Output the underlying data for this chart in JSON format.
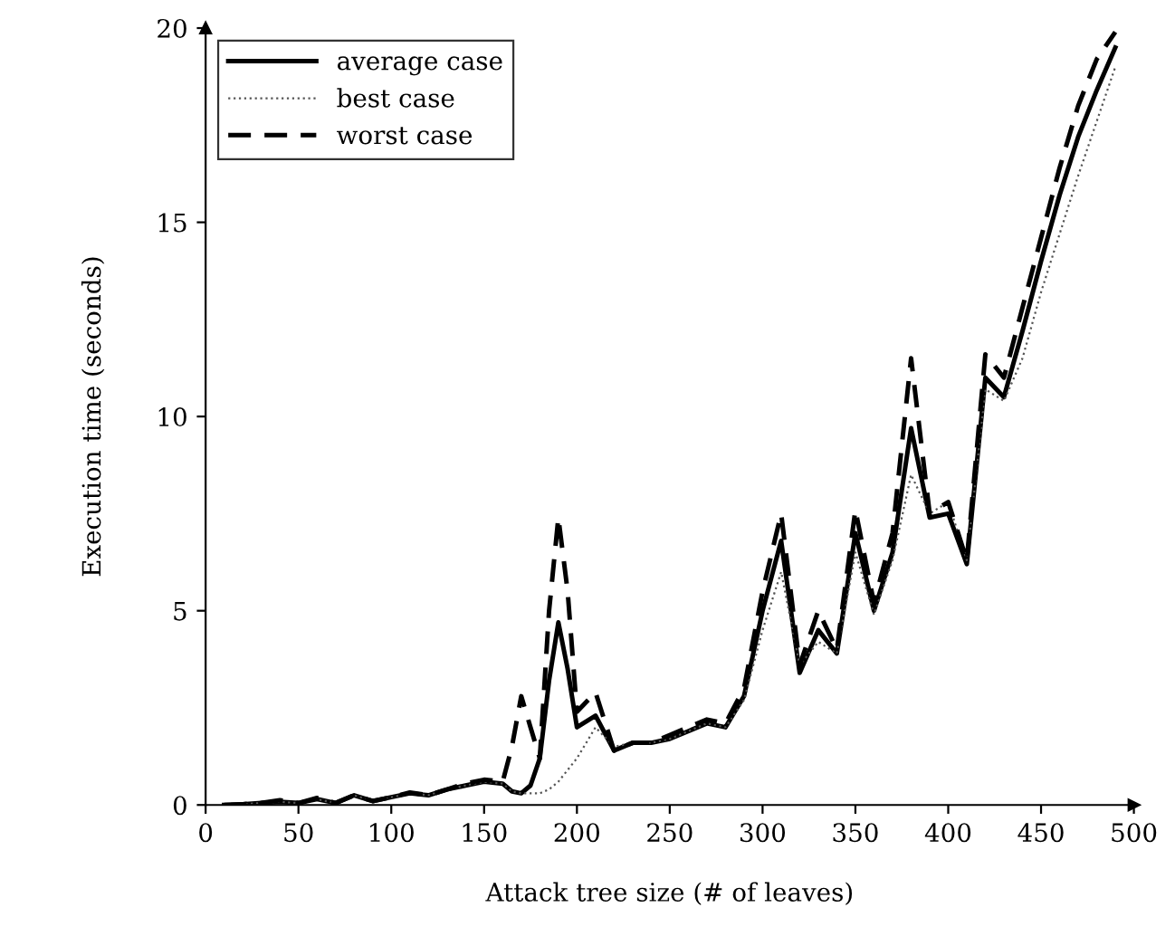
{
  "chart_data": {
    "type": "line",
    "xlabel": "Attack tree size (# of leaves)",
    "ylabel": "Execution time (seconds)",
    "x": [
      10,
      20,
      30,
      40,
      50,
      60,
      70,
      80,
      90,
      100,
      110,
      120,
      130,
      140,
      150,
      160,
      165,
      170,
      175,
      180,
      185,
      190,
      195,
      200,
      210,
      220,
      230,
      240,
      250,
      260,
      270,
      280,
      290,
      300,
      310,
      320,
      330,
      340,
      350,
      360,
      370,
      380,
      390,
      400,
      410,
      420,
      430,
      440,
      450,
      460,
      470,
      480,
      490
    ],
    "series": [
      {
        "name": "average case",
        "color": "#000000",
        "line_style": "solid",
        "values": [
          0,
          0.02,
          0.05,
          0.08,
          0.05,
          0.15,
          0.05,
          0.25,
          0.1,
          0.2,
          0.3,
          0.25,
          0.4,
          0.5,
          0.6,
          0.55,
          0.35,
          0.3,
          0.5,
          1.2,
          3.2,
          4.7,
          3.5,
          2.0,
          2.3,
          1.4,
          1.6,
          1.6,
          1.7,
          1.9,
          2.1,
          2.0,
          2.8,
          5.0,
          6.8,
          3.4,
          4.5,
          3.9,
          7.0,
          5.0,
          6.5,
          9.7,
          7.4,
          7.5,
          6.2,
          11.0,
          10.5,
          12.2,
          14.0,
          15.7,
          17.2,
          18.4,
          19.5
        ]
      },
      {
        "name": "best case",
        "color": "#555555",
        "line_style": "dotted",
        "values": [
          0,
          0.02,
          0.05,
          0.08,
          0.05,
          0.15,
          0.05,
          0.25,
          0.1,
          0.2,
          0.3,
          0.25,
          0.4,
          0.5,
          0.6,
          0.55,
          0.35,
          0.3,
          0.3,
          0.3,
          0.4,
          0.6,
          0.9,
          1.2,
          2.0,
          1.5,
          1.6,
          1.6,
          1.7,
          1.9,
          2.1,
          2.0,
          2.7,
          4.5,
          6.0,
          3.6,
          4.2,
          3.9,
          6.5,
          4.9,
          6.3,
          8.5,
          7.5,
          7.8,
          6.3,
          10.7,
          10.4,
          11.5,
          13.2,
          14.7,
          16.2,
          17.6,
          19.0
        ]
      },
      {
        "name": "worst case",
        "color": "#000000",
        "line_style": "dashed",
        "values": [
          0,
          0.02,
          0.05,
          0.12,
          0.05,
          0.18,
          0.05,
          0.25,
          0.1,
          0.2,
          0.32,
          0.25,
          0.4,
          0.55,
          0.65,
          0.6,
          1.5,
          2.8,
          2.0,
          1.2,
          5.0,
          7.4,
          5.5,
          2.4,
          2.9,
          1.4,
          1.6,
          1.6,
          1.8,
          2.0,
          2.2,
          2.1,
          3.0,
          5.5,
          7.5,
          3.6,
          5.0,
          4.0,
          7.6,
          5.2,
          7.0,
          11.5,
          7.5,
          7.8,
          6.3,
          11.6,
          11.0,
          12.8,
          14.6,
          16.4,
          18.0,
          19.2,
          19.9
        ]
      }
    ],
    "xlim": [
      0,
      500
    ],
    "ylim": [
      0,
      20
    ],
    "xticks": [
      0,
      50,
      100,
      150,
      200,
      250,
      300,
      350,
      400,
      450,
      500
    ],
    "yticks": [
      0,
      5,
      10,
      15,
      20
    ],
    "grid": false,
    "legend": "top left",
    "marker": "none"
  }
}
